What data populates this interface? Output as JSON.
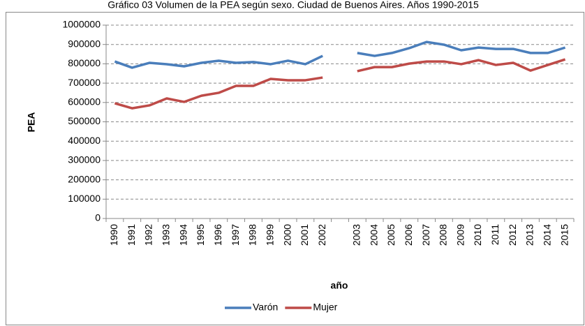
{
  "chart_data": {
    "type": "line",
    "title": "Gráfico 03 Volumen de la PEA según sexo. Ciudad de Buenos Aires. Años 1990-2015",
    "x_label": "año",
    "y_label": "PEA",
    "categories": [
      "1990",
      "1991",
      "1992",
      "1993",
      "1994",
      "1995",
      "1996",
      "1997",
      "1998",
      "1999",
      "2000",
      "2001",
      "2002",
      null,
      "2003",
      "2004",
      "2005",
      "2006",
      "2007",
      "2008",
      "2009",
      "2010",
      "2011",
      "2012",
      "2013",
      "2014",
      "2015"
    ],
    "series": [
      {
        "name": "Varón",
        "color": "#4a7ebb",
        "values": [
          812000,
          780000,
          805000,
          798000,
          787000,
          805000,
          816000,
          805000,
          809000,
          798000,
          816000,
          798000,
          841000,
          null,
          856000,
          841000,
          856000,
          881000,
          913000,
          899000,
          870000,
          884000,
          877000,
          877000,
          856000,
          856000,
          884000
        ]
      },
      {
        "name": "Mujer",
        "color": "#be4b48",
        "values": [
          596000,
          570000,
          585000,
          621000,
          603000,
          635000,
          650000,
          686000,
          686000,
          722000,
          715000,
          715000,
          729000,
          null,
          762000,
          783000,
          783000,
          801000,
          812000,
          812000,
          798000,
          819000,
          794000,
          805000,
          765000,
          794000,
          823000
        ]
      }
    ],
    "ylim": [
      0,
      1000000
    ],
    "yticks": [
      0,
      100000,
      200000,
      300000,
      400000,
      500000,
      600000,
      700000,
      800000,
      900000,
      1000000
    ],
    "grid": true,
    "legend": "bottom"
  }
}
